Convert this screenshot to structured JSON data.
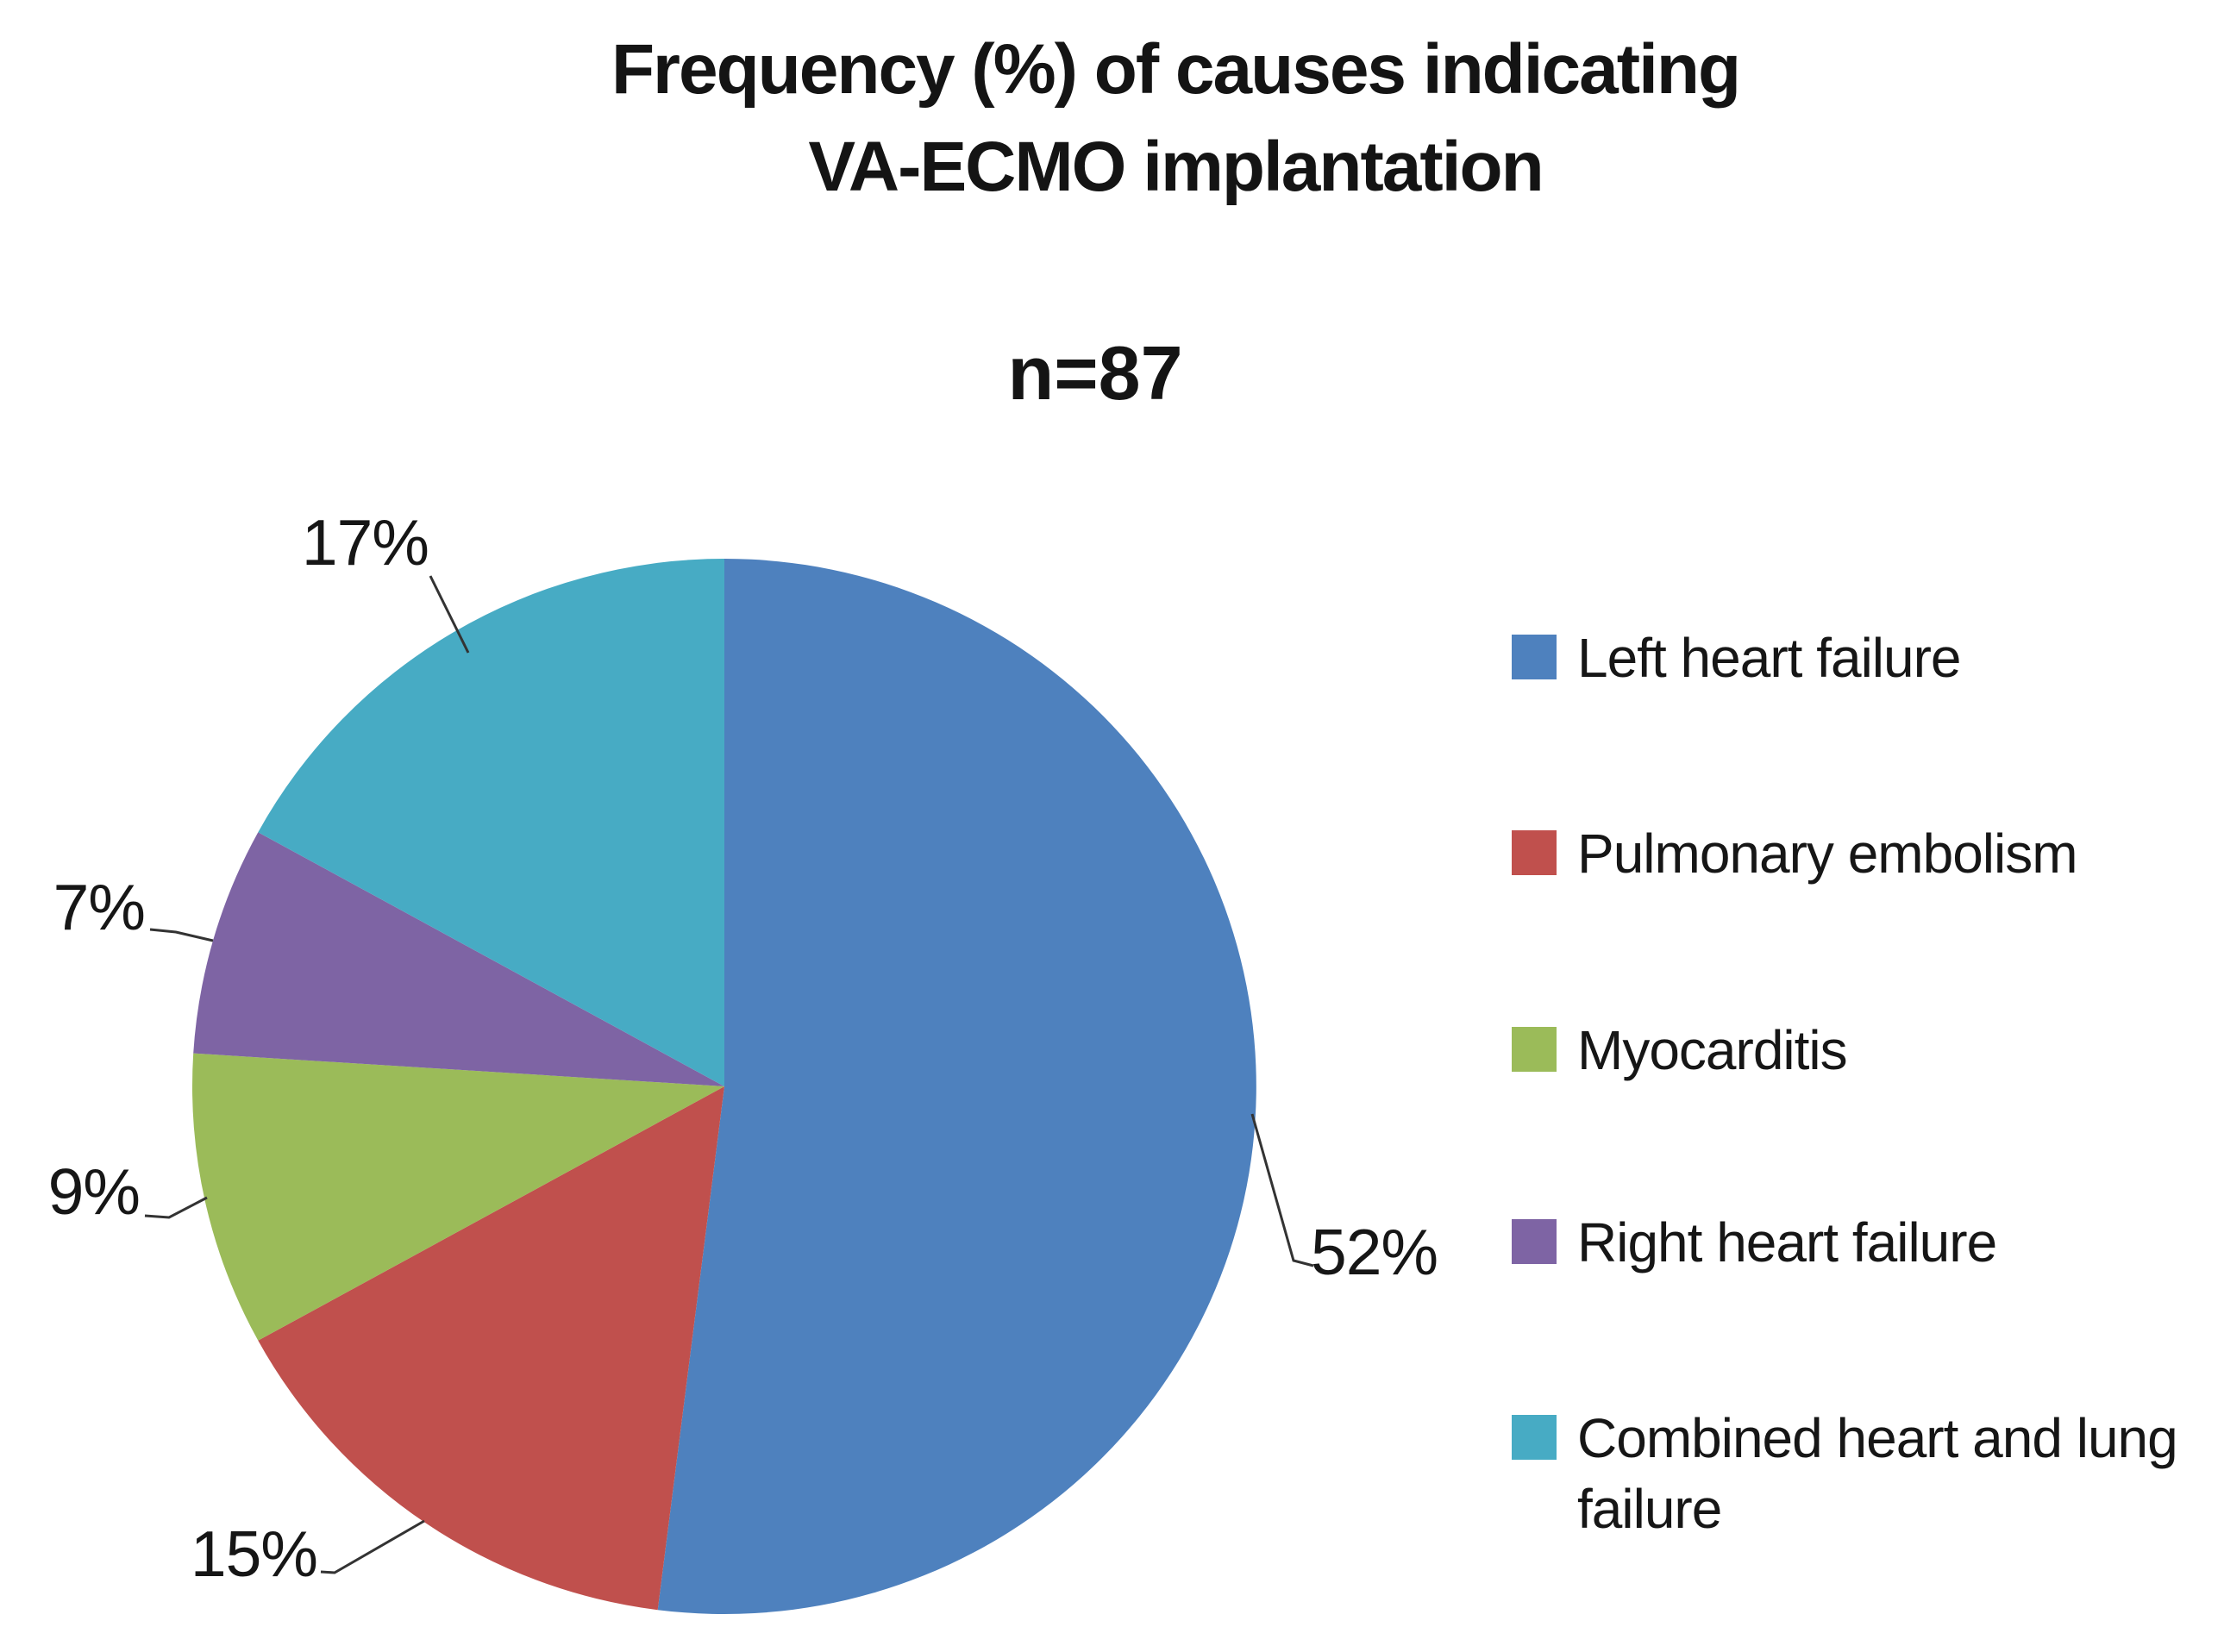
{
  "title": {
    "line1": "Frequency (%) of causes indicating",
    "line2": "VA-ECMO implantation"
  },
  "sample_size_label": "n=87",
  "chart_data": {
    "type": "pie",
    "title": "Frequency (%) of causes indicating VA-ECMO implantation",
    "subtitle": "n=87",
    "n": 87,
    "start_angle_deg": -90,
    "direction": "clockwise",
    "legend_position": "right",
    "data_labels": "percent-outside-with-leader-lines",
    "slices": [
      {
        "label": "Left heart failure",
        "value_pct": 52,
        "data_label": "52%",
        "color": "#4E81BE"
      },
      {
        "label": "Pulmonary embolism",
        "value_pct": 15,
        "data_label": "15%",
        "color": "#C0504D"
      },
      {
        "label": "Myocarditis",
        "value_pct": 9,
        "data_label": "9%",
        "color": "#9BBB59"
      },
      {
        "label": "Right heart failure",
        "value_pct": 7,
        "data_label": "7%",
        "color": "#7E64A4"
      },
      {
        "label": "Combined heart and lung failure",
        "value_pct": 17,
        "data_label": "17%",
        "color": "#47ABC4"
      }
    ],
    "leader_line_color": "#333333",
    "text_color": "#161616"
  }
}
